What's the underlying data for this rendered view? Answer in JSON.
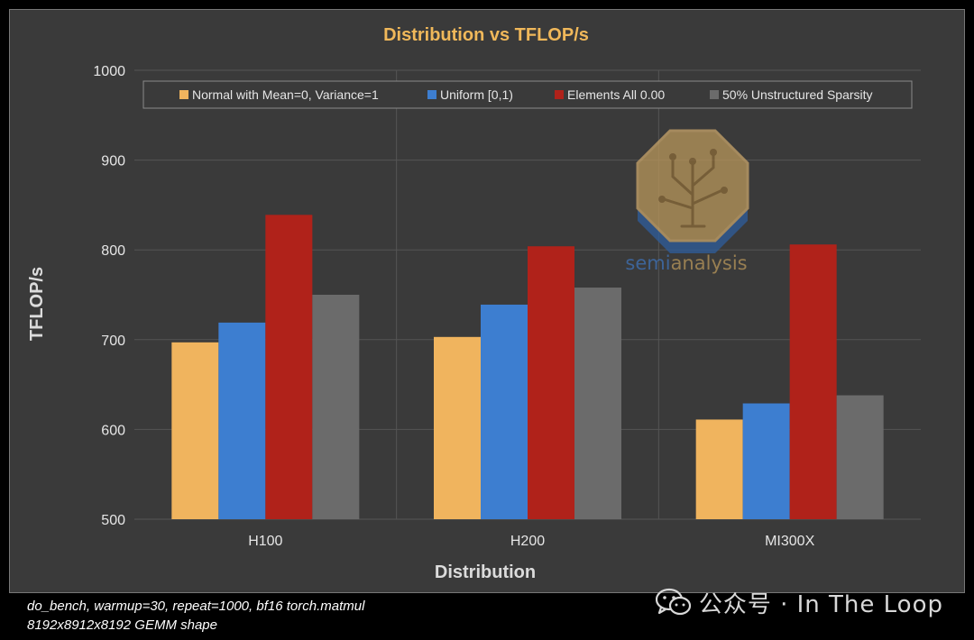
{
  "chart_data": {
    "type": "bar",
    "title": "Distribution vs TFLOP/s",
    "xlabel": "Distribution",
    "ylabel": "TFLOP/s",
    "ylim": [
      500,
      1000
    ],
    "yticks": [
      500,
      600,
      700,
      800,
      900,
      1000
    ],
    "grid": true,
    "legend_position": "top",
    "categories": [
      "H100",
      "H200",
      "MI300X"
    ],
    "series": [
      {
        "name": "Normal with Mean=0, Variance=1",
        "color": "#f0b45e",
        "values": [
          697,
          703,
          611
        ]
      },
      {
        "name": "Uniform [0,1)",
        "color": "#3d7ed0",
        "values": [
          719,
          739,
          629
        ]
      },
      {
        "name": "Elements All 0.00",
        "color": "#b0221a",
        "values": [
          839,
          804,
          806
        ]
      },
      {
        "name": "50% Unstructured Sparsity",
        "color": "#6b6b6b",
        "values": [
          750,
          758,
          638
        ]
      }
    ]
  },
  "watermark": {
    "text_a": "semi",
    "text_b": "analysis",
    "icon": "tree-circuit-icon"
  },
  "footnote": {
    "line1": "do_bench, warmup=30, repeat=1000, bf16 torch.matmul",
    "line2": "8192x8912x8192 GEMM shape"
  },
  "wechat": {
    "icon": "wechat-icon",
    "text": "公众号 · In The Loop"
  }
}
